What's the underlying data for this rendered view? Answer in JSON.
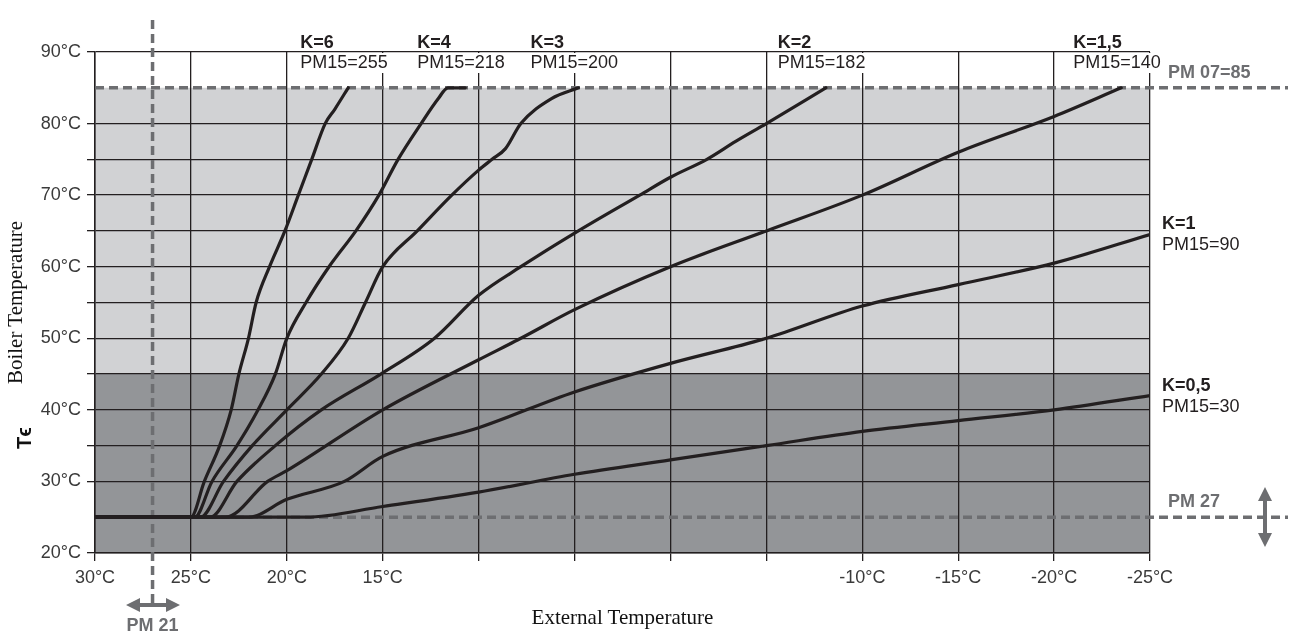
{
  "chart_data": {
    "type": "line",
    "xlabel": "External Temperature",
    "ylabel": "Boiler Temperature",
    "annotations": [
      "Tϵ"
    ],
    "xlim": [
      30,
      -25
    ],
    "ylim": [
      20,
      90
    ],
    "xticks": [
      {
        "value": 30,
        "label": "30°C"
      },
      {
        "value": 25,
        "label": "25°C"
      },
      {
        "value": 20,
        "label": "20°C"
      },
      {
        "value": 15,
        "label": "15°C"
      },
      {
        "value": 10,
        "label": null
      },
      {
        "value": 5,
        "label": null
      },
      {
        "value": 0,
        "label": null
      },
      {
        "value": -5,
        "label": null
      },
      {
        "value": -10,
        "label": "-10°C"
      },
      {
        "value": -15,
        "label": "-15°C"
      },
      {
        "value": -20,
        "label": "-20°C"
      },
      {
        "value": -25,
        "label": "-25°C"
      }
    ],
    "yticks": [
      {
        "value": 20,
        "label": "20°C"
      },
      {
        "value": 30,
        "label": "30°C"
      },
      {
        "value": 35,
        "label": null
      },
      {
        "value": 40,
        "label": "40°C"
      },
      {
        "value": 45,
        "label": null
      },
      {
        "value": 50,
        "label": "50°C"
      },
      {
        "value": 55,
        "label": null
      },
      {
        "value": 60,
        "label": "60°C"
      },
      {
        "value": 65,
        "label": null
      },
      {
        "value": 70,
        "label": "70°C"
      },
      {
        "value": 75,
        "label": null
      },
      {
        "value": 80,
        "label": "80°C"
      },
      {
        "value": 90,
        "label": "90°C"
      }
    ],
    "grid": true,
    "marker": "none",
    "bands": [
      {
        "axis": "y",
        "from": 45,
        "to": 85,
        "color": "#d1d2d4"
      },
      {
        "axis": "y",
        "from": 20,
        "to": 45,
        "color": "#939598"
      }
    ],
    "ref_lines": [
      {
        "axis": "y",
        "value": 85,
        "label": "PM 07=85",
        "color": "#6d6e71",
        "line_style": "dashed"
      },
      {
        "axis": "y",
        "value": 25,
        "label": "PM 27",
        "color": "#6d6e71",
        "line_style": "dashed"
      },
      {
        "axis": "x",
        "value": 27,
        "label": "PM 21",
        "color": "#6d6e71",
        "line_style": "dashed"
      }
    ],
    "series": [
      {
        "name": "K=6 PM15=255",
        "color": "#231f20",
        "x": [
          30,
          25,
          24.3,
          23.5,
          22.9,
          22.5,
          22.0,
          21.6,
          20.9,
          20.1,
          19.4,
          18.7,
          18.0,
          17.5,
          16.8
        ],
        "values": [
          25,
          25,
          30,
          35,
          40,
          45,
          50,
          55,
          60,
          65,
          70,
          75,
          80,
          82,
          85
        ]
      },
      {
        "name": "K=4 PM15=218",
        "color": "#231f20",
        "x": [
          30,
          24.8,
          23.9,
          22.6,
          21.5,
          20.6,
          20,
          19,
          17.8,
          16.4,
          15.2,
          14.2,
          13.0,
          12.1,
          11.6,
          10.7
        ],
        "values": [
          25,
          25,
          30,
          35,
          40,
          45,
          50,
          55,
          60,
          65,
          70,
          75,
          80,
          83.5,
          85,
          85
        ]
      },
      {
        "name": "K=3 PM15=200",
        "color": "#231f20",
        "x": [
          30,
          24.5,
          23.3,
          21.8,
          20.0,
          18.2,
          16.8,
          15.9,
          15.0,
          13.2,
          11.4,
          10,
          9.3,
          8.6,
          7.8,
          6.2,
          4.8
        ],
        "values": [
          25,
          25,
          30,
          35,
          40,
          45,
          50,
          55,
          60,
          65,
          70,
          73.5,
          75,
          76.5,
          80,
          83.5,
          85
        ]
      },
      {
        "name": "K=2 PM15=182",
        "color": "#231f20",
        "x": [
          30,
          24,
          22.6,
          20.6,
          18.2,
          15.1,
          12.3,
          10,
          7.8,
          4.8,
          1.6,
          0,
          -1.9,
          -3.4,
          -5,
          -8.1
        ],
        "values": [
          25,
          25,
          30,
          35,
          40,
          45,
          50,
          56,
          60,
          65,
          70,
          72.5,
          75,
          77.5,
          80,
          85
        ]
      },
      {
        "name": "K=1,5 PM15=140",
        "color": "#231f20",
        "x": [
          30,
          23.2,
          21,
          20,
          15,
          10,
          7.8,
          5,
          0,
          -5,
          -10,
          -15,
          -20,
          -23.5
        ],
        "values": [
          25,
          25,
          30,
          31.5,
          40,
          47,
          50,
          54,
          60,
          65,
          70,
          76,
          81,
          85
        ]
      },
      {
        "name": "K=1 PM15=90",
        "color": "#231f20",
        "x": [
          30,
          22,
          20,
          17,
          15,
          10,
          5,
          0,
          -5,
          -10,
          -15,
          -20,
          -25
        ],
        "values": [
          25,
          25,
          27.5,
          30,
          33.5,
          37.5,
          42.5,
          46.5,
          50,
          54.5,
          57.5,
          60.5,
          64.5
        ]
      },
      {
        "name": "K=0,5 PM15=30",
        "color": "#231f20",
        "x": [
          30,
          19,
          15,
          10,
          5,
          0,
          -5,
          -10,
          -15,
          -20,
          -25
        ],
        "values": [
          25,
          25,
          26.5,
          28.5,
          31,
          33,
          35,
          37,
          38.5,
          40,
          42
        ]
      }
    ]
  }
}
